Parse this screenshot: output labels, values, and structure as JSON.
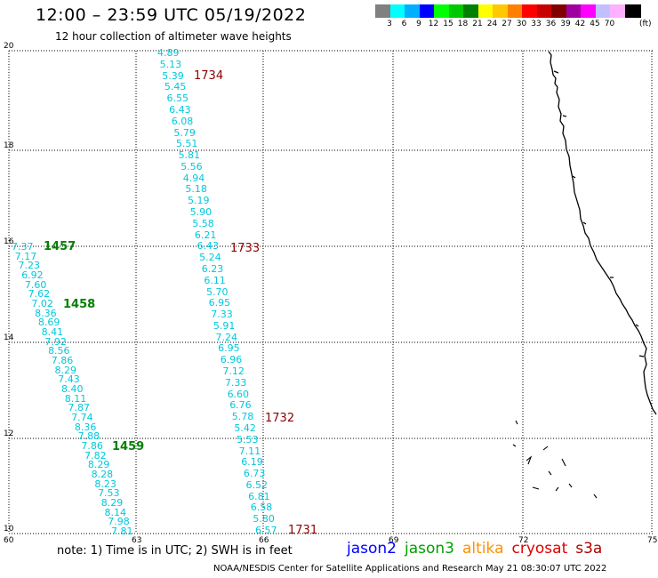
{
  "header": {
    "title": "12:00 – 23:59 UTC 05/19/2022",
    "subtitle": "12 hour collection of altimeter wave heights"
  },
  "colorbar": {
    "colors": [
      "#808080",
      "#00ffff",
      "#00b0ff",
      "#0000ff",
      "#00ff00",
      "#00c800",
      "#008000",
      "#ffff00",
      "#ffc800",
      "#ff8000",
      "#ff0000",
      "#c80000",
      "#800000",
      "#a000a0",
      "#ff00ff",
      "#c0c0ff",
      "#ffb0ff",
      "#000000"
    ],
    "labels": [
      "3",
      "6",
      "9",
      "12",
      "15",
      "18",
      "21",
      "24",
      "27",
      "30",
      "33",
      "36",
      "39",
      "42",
      "45",
      "70"
    ],
    "unit": "(ft)"
  },
  "axes": {
    "x_ticks": [
      "60",
      "63",
      "66",
      "69",
      "72",
      "75"
    ],
    "y_ticks": [
      "10",
      "12",
      "14",
      "16",
      "18",
      "20"
    ]
  },
  "tracks": {
    "right_track": [
      "4.89",
      "5.13",
      "5.39",
      "5.45",
      "6.55",
      "6.43",
      "6.08",
      "5.79",
      "5.51",
      "5.81",
      "5.56",
      "4.94",
      "5.18",
      "5.19",
      "5.90",
      "5.58",
      "6.21",
      "6.43",
      "5.24",
      "6.23",
      "6.11",
      "5.70",
      "6.95",
      "7.33",
      "5.91",
      "7.24",
      "6.95",
      "6.96",
      "7.12",
      "7.33",
      "6.60",
      "6.76",
      "5.78",
      "5.42",
      "5.53",
      "7.11",
      "6.19",
      "6.73",
      "6.52",
      "6.81",
      "6.58",
      "5.80",
      "6.57"
    ],
    "left_track": [
      "7.37",
      "7.17",
      "7.23",
      "6.92",
      "7.60",
      "7.62",
      "7.02",
      "8.36",
      "8.69",
      "8.41",
      "7.92",
      "8.56",
      "7.86",
      "8.29",
      "7.43",
      "8.40",
      "8.11",
      "7.87",
      "7.74",
      "8.36",
      "7.88",
      "7.86",
      "7.82",
      "8.29",
      "8.28",
      "8.23",
      "7.53",
      "8.29",
      "8.14",
      "7.98",
      "7.81"
    ]
  },
  "time_labels": {
    "right": [
      "1734",
      "1733",
      "1732",
      "1731"
    ],
    "left": [
      "1457",
      "1458",
      "1459"
    ]
  },
  "footer": {
    "note": "note:  1) Time is in UTC;  2) SWH is in feet",
    "satellites": [
      {
        "name": "jason2",
        "color": "#0000ff"
      },
      {
        "name": "jason3",
        "color": "#00a000"
      },
      {
        "name": "altika",
        "color": "#ff9000"
      },
      {
        "name": "cryosat",
        "color": "#e00000"
      },
      {
        "name": "s3a",
        "color": "#b00000"
      }
    ],
    "credit": "NOAA/NESDIS Center for Satellite Applications and Research     May 21 08:30:07 UTC 2022"
  }
}
